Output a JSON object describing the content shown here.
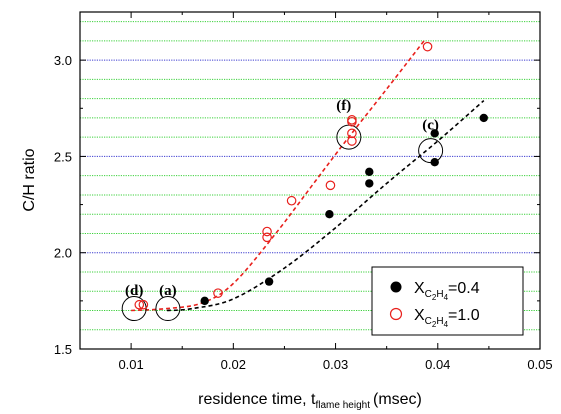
{
  "chart_data": {
    "type": "scatter",
    "xlabel": "residence time, t",
    "xlabel_sub": "flame height",
    "xlabel_unit": "(msec)",
    "ylabel": "C/H ratio",
    "xlim": [
      0.005,
      0.05
    ],
    "ylim": [
      1.5,
      3.25
    ],
    "xticks": [
      0.01,
      0.02,
      0.03,
      0.04,
      0.05
    ],
    "xtick_labels": [
      "0.01",
      "0.02",
      "0.03",
      "0.04",
      "0.05"
    ],
    "yticks": [
      1.5,
      2.0,
      2.5,
      3.0
    ],
    "ytick_labels": [
      "1.5",
      "2.0",
      "2.5",
      "3.0"
    ],
    "grid": {
      "green_step": 0.1,
      "blue_values": [
        2.0,
        2.5,
        3.0
      ]
    },
    "legend_position": "bottom-right",
    "series": [
      {
        "legend_main": "X",
        "legend_sub": "C",
        "legend_subsub": "2",
        "legend_sub2": "H",
        "legend_subsub2": "4",
        "legend_value": "=0.4",
        "marker": "filled-circle",
        "color": "#000000",
        "fit_color": "#000000",
        "points": [
          [
            0.0172,
            1.75
          ],
          [
            0.0235,
            1.85
          ],
          [
            0.0294,
            2.2
          ],
          [
            0.0333,
            2.36
          ],
          [
            0.0333,
            2.42
          ],
          [
            0.0397,
            2.47
          ],
          [
            0.0397,
            2.62
          ],
          [
            0.0445,
            2.7
          ]
        ],
        "fit": [
          [
            0.0135,
            1.7
          ],
          [
            0.016,
            1.71
          ],
          [
            0.02,
            1.76
          ],
          [
            0.025,
            1.92
          ],
          [
            0.03,
            2.13
          ],
          [
            0.035,
            2.36
          ],
          [
            0.04,
            2.58
          ],
          [
            0.0445,
            2.79
          ]
        ]
      },
      {
        "legend_main": "X",
        "legend_sub": "C",
        "legend_subsub": "2",
        "legend_sub2": "H",
        "legend_subsub2": "4",
        "legend_value": "=1.0",
        "marker": "open-circle",
        "color": "#e8201c",
        "fit_color": "#e8201c",
        "points": [
          [
            0.0108,
            1.73
          ],
          [
            0.0112,
            1.73
          ],
          [
            0.0185,
            1.79
          ],
          [
            0.0233,
            2.08
          ],
          [
            0.0233,
            2.11
          ],
          [
            0.0257,
            2.27
          ],
          [
            0.0295,
            2.35
          ],
          [
            0.0316,
            2.58
          ],
          [
            0.0316,
            2.62
          ],
          [
            0.0316,
            2.68
          ],
          [
            0.0316,
            2.69
          ],
          [
            0.039,
            3.07
          ]
        ],
        "fit": [
          [
            0.01,
            1.7
          ],
          [
            0.0135,
            1.71
          ],
          [
            0.017,
            1.74
          ],
          [
            0.02,
            1.84
          ],
          [
            0.024,
            2.09
          ],
          [
            0.028,
            2.37
          ],
          [
            0.031,
            2.58
          ],
          [
            0.035,
            2.85
          ],
          [
            0.0388,
            3.11
          ]
        ]
      }
    ],
    "annotations": [
      {
        "label": "(d)",
        "x": 0.0103,
        "y": 1.78
      },
      {
        "label": "(a)",
        "x": 0.0136,
        "y": 1.78
      },
      {
        "label": "(f)",
        "x": 0.0308,
        "y": 2.74
      },
      {
        "label": "(c)",
        "x": 0.0393,
        "y": 2.64
      }
    ],
    "circles": [
      {
        "x": 0.0103,
        "y": 1.71
      },
      {
        "x": 0.0136,
        "y": 1.71
      },
      {
        "x": 0.0313,
        "y": 2.6
      },
      {
        "x": 0.0393,
        "y": 2.53
      }
    ]
  }
}
